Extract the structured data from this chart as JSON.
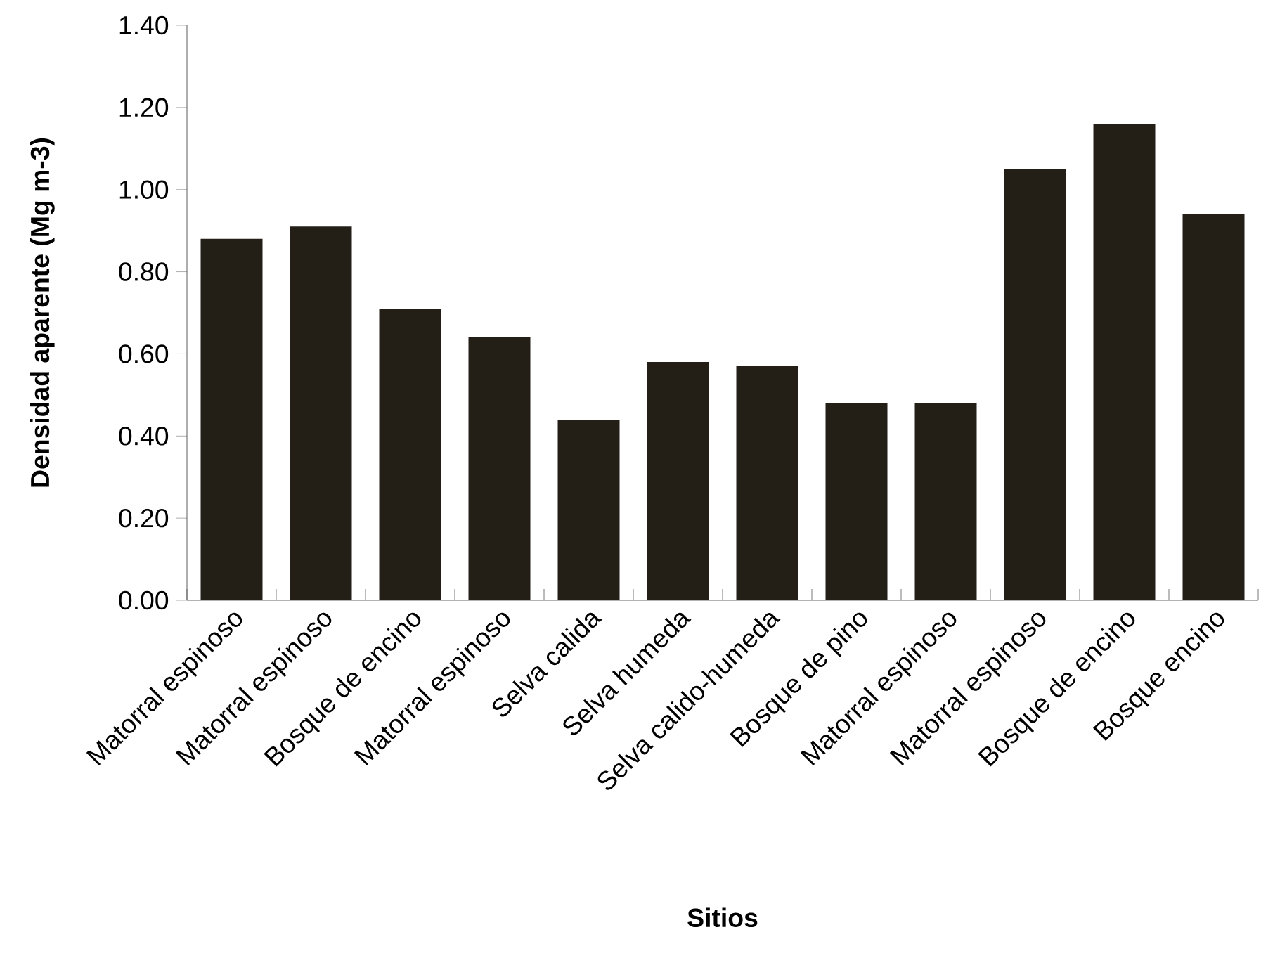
{
  "chart_data": {
    "type": "bar",
    "xlabel": "Sitios",
    "ylabel": "Densidad aparente (Mg m-3)",
    "categories": [
      "Matorral espinoso",
      "Matorral espinoso",
      "Bosque de encino",
      "Matorral espinoso",
      "Selva calida",
      "Selva humeda",
      "Selva calido-humeda",
      "Bosque de pino",
      "Matorral espinoso",
      "Matorral espinoso",
      "Bosque de encino",
      "Bosque encino"
    ],
    "values": [
      0.88,
      0.91,
      0.71,
      0.64,
      0.44,
      0.58,
      0.57,
      0.48,
      0.48,
      1.05,
      1.16,
      0.94
    ],
    "color": "#231f17",
    "ylim": [
      0,
      1.4
    ],
    "yticks": [
      {
        "value": 0,
        "label": "0.00"
      },
      {
        "value": 0.2,
        "label": "0.20"
      },
      {
        "value": 0.4,
        "label": "0.40"
      },
      {
        "value": 0.6,
        "label": "0.60"
      },
      {
        "value": 0.8,
        "label": "0.80"
      },
      {
        "value": 1.0,
        "label": "1.00"
      },
      {
        "value": 1.2,
        "label": "1.20"
      },
      {
        "value": 1.4,
        "label": "1.40"
      }
    ]
  }
}
